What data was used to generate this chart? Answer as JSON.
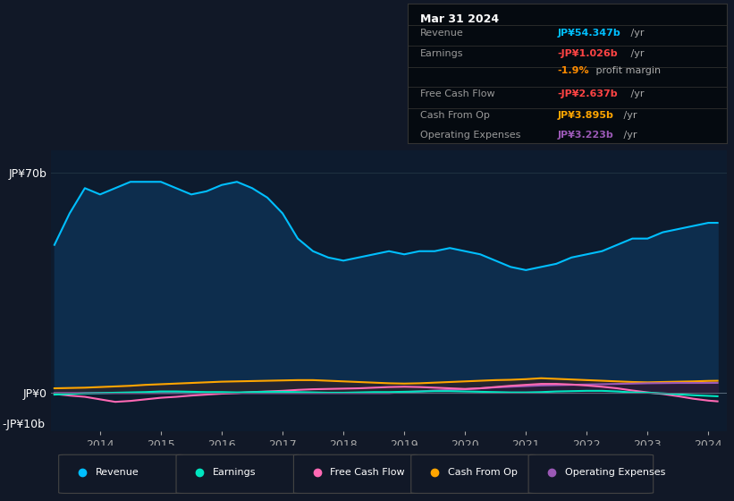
{
  "background_color": "#111827",
  "plot_bg_color": "#111827",
  "chart_bg": "#0d1b2e",
  "years": [
    2013.25,
    2013.5,
    2013.75,
    2014.0,
    2014.25,
    2014.5,
    2014.75,
    2015.0,
    2015.25,
    2015.5,
    2015.75,
    2016.0,
    2016.25,
    2016.5,
    2016.75,
    2017.0,
    2017.25,
    2017.5,
    2017.75,
    2018.0,
    2018.25,
    2018.5,
    2018.75,
    2019.0,
    2019.25,
    2019.5,
    2019.75,
    2020.0,
    2020.25,
    2020.5,
    2020.75,
    2021.0,
    2021.25,
    2021.5,
    2021.75,
    2022.0,
    2022.25,
    2022.5,
    2022.75,
    2023.0,
    2023.25,
    2023.5,
    2023.75,
    2024.0,
    2024.15
  ],
  "revenue": [
    47,
    57,
    65,
    63,
    65,
    67,
    67,
    67,
    65,
    63,
    64,
    66,
    67,
    65,
    62,
    57,
    49,
    45,
    43,
    42,
    43,
    44,
    45,
    44,
    45,
    45,
    46,
    45,
    44,
    42,
    40,
    39,
    40,
    41,
    43,
    44,
    45,
    47,
    49,
    49,
    51,
    52,
    53,
    54,
    54
  ],
  "earnings": [
    -0.5,
    -0.3,
    -0.1,
    0.0,
    0.1,
    0.2,
    0.3,
    0.5,
    0.5,
    0.4,
    0.3,
    0.3,
    0.2,
    0.3,
    0.4,
    0.4,
    0.3,
    0.2,
    0.1,
    0.1,
    0.2,
    0.3,
    0.3,
    0.4,
    0.5,
    0.6,
    0.6,
    0.5,
    0.4,
    0.3,
    0.2,
    0.2,
    0.3,
    0.5,
    0.6,
    0.7,
    0.7,
    0.5,
    0.2,
    0.1,
    -0.1,
    -0.4,
    -0.7,
    -0.9,
    -1.026
  ],
  "free_cash_flow": [
    -0.3,
    -0.8,
    -1.2,
    -2.0,
    -2.8,
    -2.5,
    -2.0,
    -1.5,
    -1.2,
    -0.8,
    -0.5,
    -0.2,
    0.0,
    0.3,
    0.5,
    0.7,
    1.0,
    1.2,
    1.3,
    1.4,
    1.5,
    1.7,
    1.9,
    2.0,
    1.9,
    1.7,
    1.5,
    1.3,
    1.5,
    1.9,
    2.3,
    2.6,
    2.9,
    2.9,
    2.7,
    2.4,
    2.0,
    1.5,
    0.8,
    0.2,
    -0.3,
    -1.0,
    -1.8,
    -2.4,
    -2.637
  ],
  "cash_from_op": [
    1.5,
    1.6,
    1.7,
    1.9,
    2.1,
    2.3,
    2.6,
    2.8,
    3.0,
    3.2,
    3.4,
    3.6,
    3.7,
    3.8,
    3.9,
    4.0,
    4.1,
    4.1,
    3.9,
    3.7,
    3.5,
    3.3,
    3.1,
    3.0,
    3.1,
    3.3,
    3.5,
    3.7,
    3.9,
    4.1,
    4.2,
    4.4,
    4.7,
    4.5,
    4.3,
    4.1,
    3.9,
    3.7,
    3.5,
    3.4,
    3.5,
    3.6,
    3.7,
    3.85,
    3.895
  ],
  "operating_expenses": [
    0.0,
    0.0,
    0.0,
    0.0,
    0.0,
    0.0,
    0.0,
    0.0,
    0.0,
    0.0,
    0.0,
    0.0,
    0.0,
    0.0,
    0.0,
    0.0,
    0.0,
    0.0,
    0.0,
    0.0,
    0.0,
    0.0,
    0.0,
    0.3,
    0.5,
    0.8,
    1.0,
    1.2,
    1.5,
    1.8,
    2.0,
    2.2,
    2.4,
    2.5,
    2.6,
    2.7,
    2.8,
    2.9,
    3.0,
    3.1,
    3.15,
    3.2,
    3.2,
    3.21,
    3.223
  ],
  "revenue_color": "#00bfff",
  "revenue_fill": "#0d2d4d",
  "earnings_color": "#00e5c0",
  "free_cash_flow_color": "#ff69b4",
  "cash_from_op_color": "#ffa500",
  "cash_from_op_fill": "#252530",
  "operating_expenses_color": "#9b59b6",
  "ylim": [
    -12,
    77
  ],
  "ytick_0": 0,
  "ytick_70": 70,
  "ytick_neg10": -10,
  "xticks": [
    2014,
    2015,
    2016,
    2017,
    2018,
    2019,
    2020,
    2021,
    2022,
    2023,
    2024
  ],
  "legend_items": [
    "Revenue",
    "Earnings",
    "Free Cash Flow",
    "Cash From Op",
    "Operating Expenses"
  ],
  "legend_colors": [
    "#00bfff",
    "#00e5c0",
    "#ff69b4",
    "#ffa500",
    "#9b59b6"
  ],
  "info_box_title": "Mar 31 2024",
  "info_rows": [
    {
      "label": "Revenue",
      "value": "JP¥54.347b",
      "suffix": " /yr",
      "value_color": "#00bfff"
    },
    {
      "label": "Earnings",
      "value": "-JP¥1.026b",
      "suffix": " /yr",
      "value_color": "#ff4444"
    },
    {
      "label": "",
      "value": "-1.9%",
      "suffix": " profit margin",
      "value_color": "#ff8c00"
    },
    {
      "label": "Free Cash Flow",
      "value": "-JP¥2.637b",
      "suffix": " /yr",
      "value_color": "#ff4444"
    },
    {
      "label": "Cash From Op",
      "value": "JP¥3.895b",
      "suffix": " /yr",
      "value_color": "#ffa500"
    },
    {
      "label": "Operating Expenses",
      "value": "JP¥3.223b",
      "suffix": " /yr",
      "value_color": "#9b59b6"
    }
  ]
}
